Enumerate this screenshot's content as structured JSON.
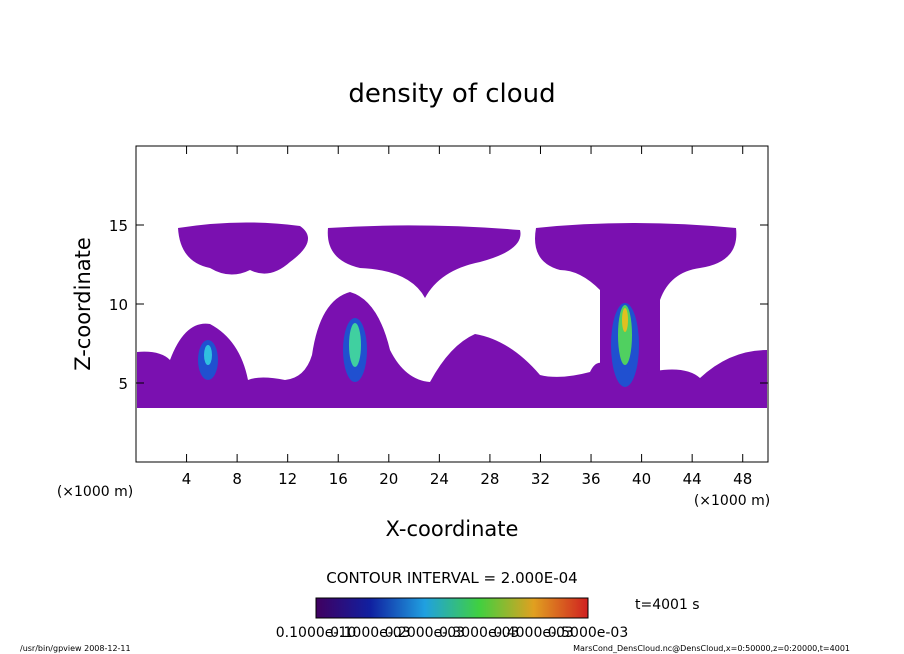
{
  "chart_data": {
    "type": "contour",
    "title": "density of cloud",
    "x_label": "X-coordinate",
    "y_label": "Z-coordinate",
    "x_unit": "(×1000 m)",
    "y_unit": "(×1000 m)",
    "xlim": [
      0,
      50
    ],
    "xticks": [
      4,
      8,
      12,
      16,
      20,
      24,
      28,
      32,
      36,
      40,
      44,
      48
    ],
    "ylim": [
      0,
      20
    ],
    "yticks": [
      5,
      10,
      15
    ],
    "contour_interval": "CONTOUR INTERVAL = 2.000E-04",
    "time_label": "t=4001 s",
    "colorbar_labels": [
      "0.1000e-10",
      "0.1000e-03",
      "0.2000e-03",
      "0.3000e-03",
      "0.4000e-03",
      "0.5000e-03"
    ],
    "footer_left": "/usr/bin/gpview  2008-12-11",
    "footer_right": "MarsCond_DensCloud.nc@DensCloud,x=0:50000,z=0:20000,t=4001"
  }
}
